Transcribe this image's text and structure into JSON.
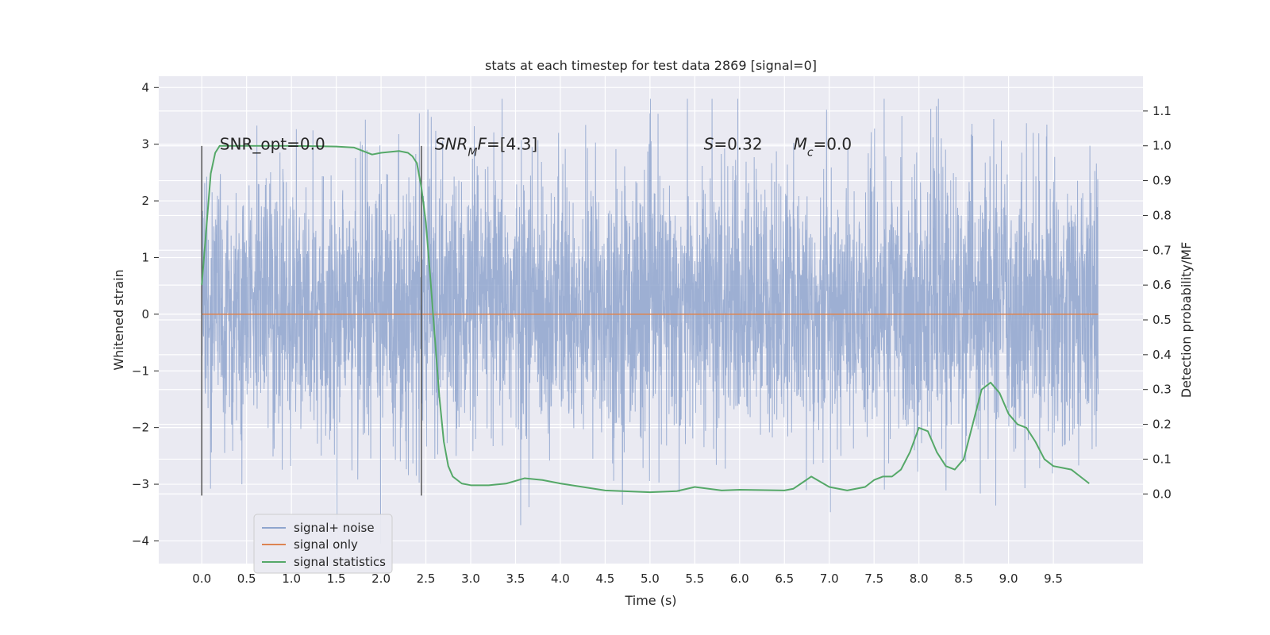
{
  "chart_data": {
    "type": "line",
    "title": "stats at each timestep for test data 2869 [signal=0]",
    "xlabel": "Time (s)",
    "ylabel_left": "Whitened strain",
    "ylabel_right": "Detection probability/MF",
    "xlim": [
      -0.48,
      10.5
    ],
    "ylim_left": [
      -4.4,
      4.2
    ],
    "ylim_right": [
      -0.2,
      1.2
    ],
    "x_ticks": [
      "0.0",
      "0.5",
      "1.0",
      "1.5",
      "2.0",
      "2.5",
      "3.0",
      "3.5",
      "4.0",
      "4.5",
      "5.0",
      "5.5",
      "6.0",
      "6.5",
      "7.0",
      "7.5",
      "8.0",
      "8.5",
      "9.0",
      "9.5"
    ],
    "y_ticks_left": [
      "−4",
      "−3",
      "−2",
      "−1",
      "0",
      "1",
      "2",
      "3",
      "4"
    ],
    "y_ticks_right": [
      "0.0",
      "0.1",
      "0.2",
      "0.3",
      "0.4",
      "0.5",
      "0.6",
      "0.7",
      "0.8",
      "0.9",
      "1.0",
      "1.1"
    ],
    "grid": true,
    "legend_position": "lower-left",
    "colors": {
      "background": "#eaeaf2",
      "grid": "#ffffff",
      "noise": "#8fa5ce",
      "signal_only": "#dd8452",
      "statistics": "#55a868",
      "marker": "#555555"
    },
    "series": [
      {
        "name": "signal+ noise",
        "axis": "left",
        "duration": [
          0.0,
          10.0
        ],
        "typical_range": [
          -2.3,
          2.6
        ],
        "extremes": {
          "max": 3.8,
          "min": -4.05
        }
      },
      {
        "name": "signal only",
        "axis": "left",
        "x": [
          0.0,
          10.0
        ],
        "y": [
          0.0,
          0.0
        ]
      },
      {
        "name": "signal statistics",
        "axis": "right",
        "x": [
          0.0,
          0.1,
          0.15,
          0.2,
          0.3,
          0.5,
          1.0,
          1.5,
          1.7,
          1.9,
          2.0,
          2.2,
          2.3,
          2.35,
          2.4,
          2.45,
          2.5,
          2.55,
          2.6,
          2.65,
          2.7,
          2.75,
          2.8,
          2.9,
          3.0,
          3.2,
          3.4,
          3.6,
          3.8,
          4.0,
          4.5,
          5.0,
          5.3,
          5.5,
          5.8,
          6.0,
          6.5,
          6.6,
          6.8,
          7.0,
          7.2,
          7.4,
          7.5,
          7.6,
          7.7,
          7.8,
          7.9,
          8.0,
          8.1,
          8.2,
          8.3,
          8.4,
          8.5,
          8.6,
          8.7,
          8.8,
          8.9,
          9.0,
          9.1,
          9.2,
          9.3,
          9.4,
          9.5,
          9.6,
          9.7,
          9.8,
          9.9
        ],
        "y": [
          0.6,
          0.92,
          0.98,
          1.0,
          1.0,
          1.0,
          1.0,
          0.998,
          0.995,
          0.975,
          0.98,
          0.985,
          0.98,
          0.97,
          0.95,
          0.88,
          0.78,
          0.62,
          0.45,
          0.28,
          0.15,
          0.08,
          0.05,
          0.03,
          0.025,
          0.025,
          0.03,
          0.045,
          0.04,
          0.03,
          0.01,
          0.005,
          0.008,
          0.02,
          0.01,
          0.012,
          0.01,
          0.015,
          0.05,
          0.02,
          0.01,
          0.02,
          0.04,
          0.05,
          0.05,
          0.07,
          0.12,
          0.19,
          0.18,
          0.12,
          0.08,
          0.07,
          0.1,
          0.2,
          0.3,
          0.32,
          0.29,
          0.23,
          0.2,
          0.19,
          0.15,
          0.1,
          0.08,
          0.075,
          0.07,
          0.05,
          0.03
        ]
      }
    ],
    "markers": [
      {
        "x": 0.0,
        "ymin": -3.2,
        "ymax": 2.97
      },
      {
        "x": 2.45,
        "ymin": -3.2,
        "ymax": 2.97
      }
    ],
    "annotations": [
      {
        "x": 0.2,
        "y": 3.0,
        "parts": [
          {
            "t": "SNR_opt=0.0",
            "i": false
          }
        ]
      },
      {
        "x": 2.6,
        "y": 3.0,
        "parts": [
          {
            "t": "SNR",
            "i": true
          },
          {
            "t": "M",
            "i": true,
            "sub": true
          },
          {
            "t": "F",
            "i": true
          },
          {
            "t": "=[4.3]",
            "i": false
          }
        ]
      },
      {
        "x": 5.6,
        "y": 3.0,
        "parts": [
          {
            "t": "S",
            "i": true
          },
          {
            "t": "=0.32",
            "i": false
          }
        ]
      },
      {
        "x": 6.6,
        "y": 3.0,
        "parts": [
          {
            "t": "M",
            "i": true
          },
          {
            "t": "c",
            "i": true,
            "sub": true
          },
          {
            "t": "=0.0",
            "i": false
          }
        ]
      }
    ]
  }
}
